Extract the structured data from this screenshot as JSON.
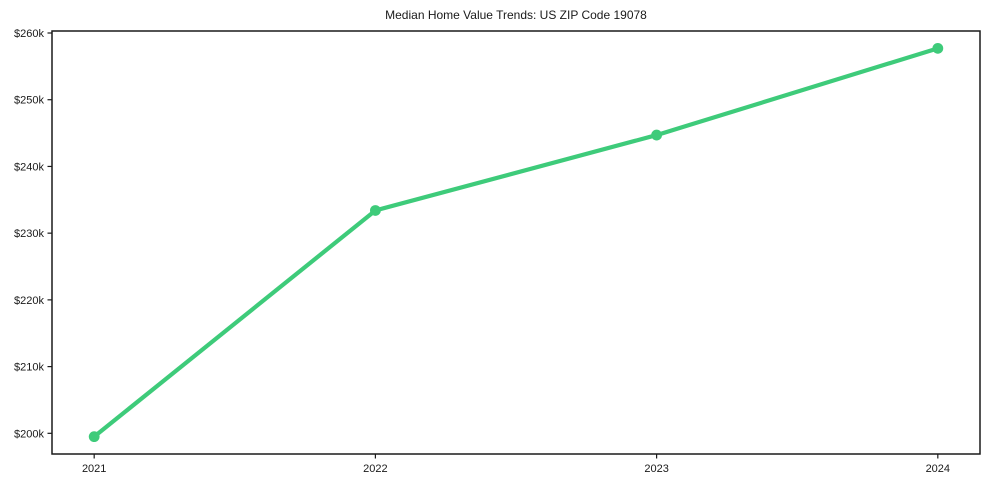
{
  "chart_data": {
    "type": "line",
    "title": "Median Home Value Trends: US ZIP Code 19078",
    "x": [
      2021,
      2022,
      2023,
      2024
    ],
    "x_tick_labels": [
      "2021",
      "2022",
      "2023",
      "2024"
    ],
    "values": [
      199500,
      233400,
      244700,
      257700
    ],
    "series_name": "Median Home Value",
    "y_ticks": [
      200000,
      210000,
      220000,
      230000,
      240000,
      250000,
      260000
    ],
    "y_tick_labels": [
      "$200k",
      "$210k",
      "$220k",
      "$230k",
      "$240k",
      "$250k",
      "$260k"
    ],
    "xlabel": "",
    "ylabel": "",
    "xlim": [
      2020.85,
      2024.15
    ],
    "ylim": [
      196900,
      260300
    ],
    "grid": false,
    "legend": "none",
    "marker": "circle",
    "line_color": "#3ecb7a",
    "line_width": 4.2,
    "marker_radius": 5.4,
    "axis_color": "#1a1a1a",
    "tick_label_color": "#1a1a1a",
    "background_color": "#ffffff"
  }
}
